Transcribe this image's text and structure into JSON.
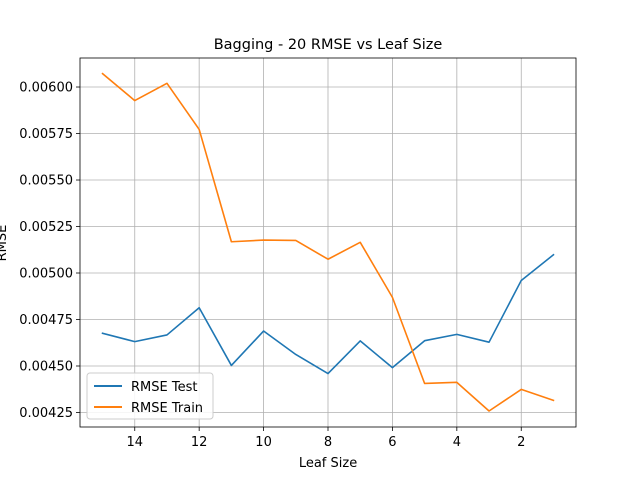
{
  "chart_data": {
    "type": "line",
    "title": "Bagging - 20 RMSE vs Leaf Size",
    "xlabel": "Leaf Size",
    "ylabel": "RMSE",
    "x": [
      15,
      14,
      13,
      12,
      11,
      10,
      9,
      8,
      7,
      6,
      5,
      4,
      3,
      2,
      1
    ],
    "x_inverted": true,
    "xlim": [
      15.7,
      0.3
    ],
    "ylim": [
      0.004172,
      0.006156
    ],
    "x_ticks": [
      14,
      12,
      10,
      8,
      6,
      4,
      2
    ],
    "y_ticks": [
      0.00425,
      0.0045,
      0.00475,
      0.005,
      0.00525,
      0.0055,
      0.00575,
      0.006
    ],
    "y_tick_labels": [
      "0.00425",
      "0.00450",
      "0.00475",
      "0.00500",
      "0.00525",
      "0.00550",
      "0.00575",
      "0.00600"
    ],
    "grid": true,
    "legend_position": "lower-left",
    "series": [
      {
        "name": "RMSE Test",
        "color": "#1f77b4",
        "values": [
          0.004676,
          0.004631,
          0.004667,
          0.004813,
          0.004503,
          0.004688,
          0.004562,
          0.004459,
          0.004635,
          0.004491,
          0.004636,
          0.00467,
          0.004628,
          0.00496,
          0.005098
        ]
      },
      {
        "name": "RMSE Train",
        "color": "#ff7f0e",
        "values": [
          0.006072,
          0.005927,
          0.00602,
          0.005772,
          0.005168,
          0.005177,
          0.005175,
          0.005074,
          0.005165,
          0.004869,
          0.004406,
          0.004412,
          0.004258,
          0.004374,
          0.004315
        ]
      }
    ]
  }
}
